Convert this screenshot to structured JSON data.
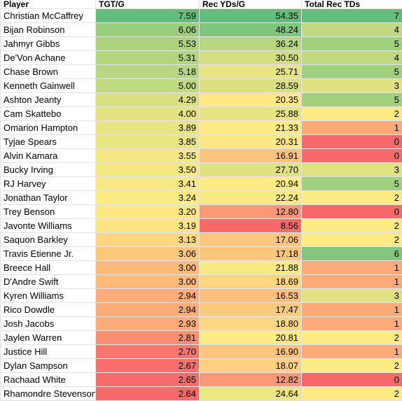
{
  "table": {
    "header": [
      "Player",
      "TGT/G",
      "Rec YDs/G",
      "Total Rec TDs"
    ],
    "color_scale": [
      "#f8696b",
      "#ffeb84",
      "#63be7b"
    ],
    "rows": [
      [
        "Christian McCaffrey",
        "7.59",
        "54.35",
        "7"
      ],
      [
        "Bijan Robinson",
        "6.06",
        "48.24",
        "4"
      ],
      [
        "Jahmyr Gibbs",
        "5.53",
        "36.24",
        "5"
      ],
      [
        "De'Von Achane",
        "5.31",
        "30.50",
        "4"
      ],
      [
        "Chase Brown",
        "5.18",
        "25.71",
        "5"
      ],
      [
        "Kenneth Gainwell",
        "5.00",
        "28.59",
        "3"
      ],
      [
        "Ashton Jeanty",
        "4.29",
        "20.35",
        "5"
      ],
      [
        "Cam Skattebo",
        "4.00",
        "25.88",
        "2"
      ],
      [
        "Omarion Hampton",
        "3.89",
        "21.33",
        "1"
      ],
      [
        "Tyjae Spears",
        "3.85",
        "20.31",
        "0"
      ],
      [
        "Alvin Kamara",
        "3.55",
        "16.91",
        "0"
      ],
      [
        "Bucky Irving",
        "3.50",
        "27.70",
        "3"
      ],
      [
        "RJ Harvey",
        "3.41",
        "20.94",
        "5"
      ],
      [
        "Jonathan Taylor",
        "3.24",
        "22.24",
        "2"
      ],
      [
        "Trey Benson",
        "3.20",
        "12.80",
        "0"
      ],
      [
        "Javonte Williams",
        "3.19",
        "8.56",
        "2"
      ],
      [
        "Saquon Barkley",
        "3.13",
        "17.06",
        "2"
      ],
      [
        "Travis Etienne Jr.",
        "3.06",
        "17.18",
        "6"
      ],
      [
        "Breece Hall",
        "3.00",
        "21.88",
        "1"
      ],
      [
        "D'Andre Swift",
        "3.00",
        "18.69",
        "1"
      ],
      [
        "Kyren Williams",
        "2.94",
        "16.53",
        "3"
      ],
      [
        "Rico Dowdle",
        "2.94",
        "17.47",
        "1"
      ],
      [
        "Josh Jacobs",
        "2.93",
        "18.80",
        "1"
      ],
      [
        "Jaylen Warren",
        "2.81",
        "20.81",
        "2"
      ],
      [
        "Justice Hill",
        "2.70",
        "16.90",
        "1"
      ],
      [
        "Dylan Sampson",
        "2.67",
        "18.07",
        "2"
      ],
      [
        "Rachaad White",
        "2.65",
        "12.82",
        "0"
      ],
      [
        "Rhamondre Stevenson",
        "2.64",
        "24.64",
        "2"
      ]
    ]
  }
}
